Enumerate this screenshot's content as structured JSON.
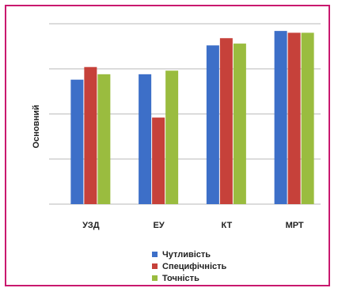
{
  "chart_data": {
    "type": "bar",
    "title": "",
    "xlabel": "",
    "ylabel": "Основний",
    "categories": [
      "УЗД",
      "ЕУ",
      "КТ",
      "МРТ"
    ],
    "series": [
      {
        "name": "Чутливість",
        "color": "#3d6fc8",
        "values": [
          69,
          72,
          88,
          96
        ]
      },
      {
        "name": "Специфічність",
        "color": "#c6413a",
        "values": [
          76,
          48,
          92,
          95
        ]
      },
      {
        "name": "Точність",
        "color": "#9abc3f",
        "values": [
          72,
          74,
          89,
          95
        ]
      }
    ],
    "ylim": [
      0,
      100
    ],
    "yticks_shown": false,
    "grid": true,
    "legend_position": "bottom"
  }
}
